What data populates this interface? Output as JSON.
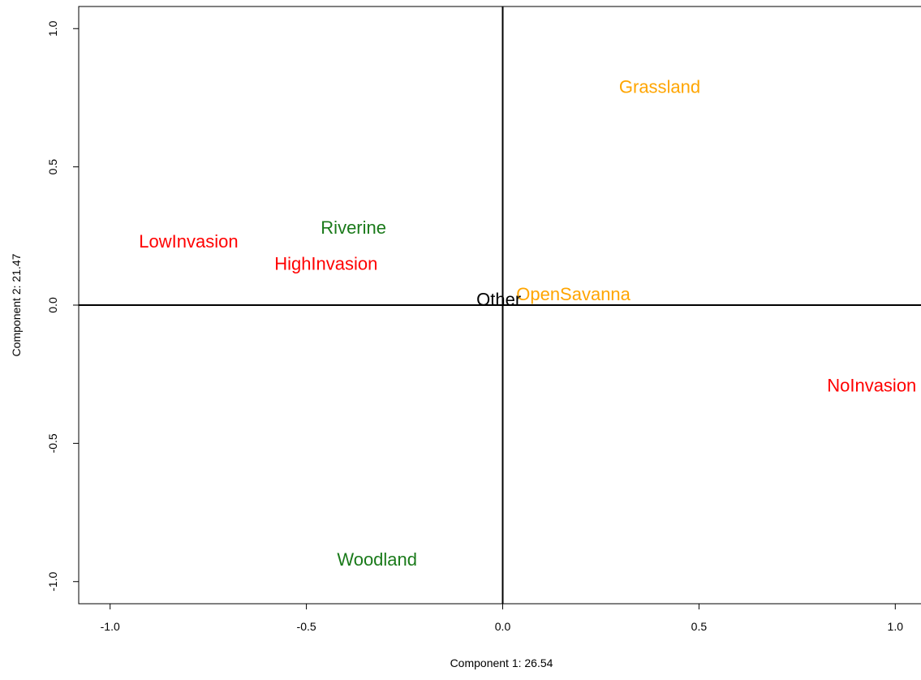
{
  "chart_data": {
    "type": "scatter",
    "title": "",
    "xlabel": "Component 1:  26.54",
    "ylabel": "Component 2:  21.47",
    "xlim": [
      -1.08,
      1.08
    ],
    "ylim": [
      -1.08,
      1.08
    ],
    "grid": false,
    "xticks": [
      {
        "value": -1.0,
        "label": "-1.0"
      },
      {
        "value": -0.5,
        "label": "-0.5"
      },
      {
        "value": 0.0,
        "label": "0.0"
      },
      {
        "value": 0.5,
        "label": "0.5"
      },
      {
        "value": 1.0,
        "label": "1.0"
      }
    ],
    "yticks": [
      {
        "value": -1.0,
        "label": "-1.0"
      },
      {
        "value": -0.5,
        "label": "-0.5"
      },
      {
        "value": 0.0,
        "label": "0.0"
      },
      {
        "value": 0.5,
        "label": "0.5"
      },
      {
        "value": 1.0,
        "label": "1.0"
      }
    ],
    "reference_lines": {
      "x": 0,
      "y": 0
    },
    "points": [
      {
        "label": "Grassland",
        "x": 0.4,
        "y": 0.79,
        "color": "#FFA500"
      },
      {
        "label": "OpenSavanna",
        "x": 0.18,
        "y": 0.04,
        "color": "#FFA500"
      },
      {
        "label": "Riverine",
        "x": -0.38,
        "y": 0.28,
        "color": "#1A7A1A"
      },
      {
        "label": "Woodland",
        "x": -0.32,
        "y": -0.92,
        "color": "#1A7A1A"
      },
      {
        "label": "LowInvasion",
        "x": -0.8,
        "y": 0.23,
        "color": "#FF0000"
      },
      {
        "label": "HighInvasion",
        "x": -0.45,
        "y": 0.15,
        "color": "#FF0000"
      },
      {
        "label": "NoInvasion",
        "x": 0.94,
        "y": -0.29,
        "color": "#FF0000"
      },
      {
        "label": "Other",
        "x": -0.01,
        "y": 0.02,
        "color": "#000000"
      }
    ]
  }
}
